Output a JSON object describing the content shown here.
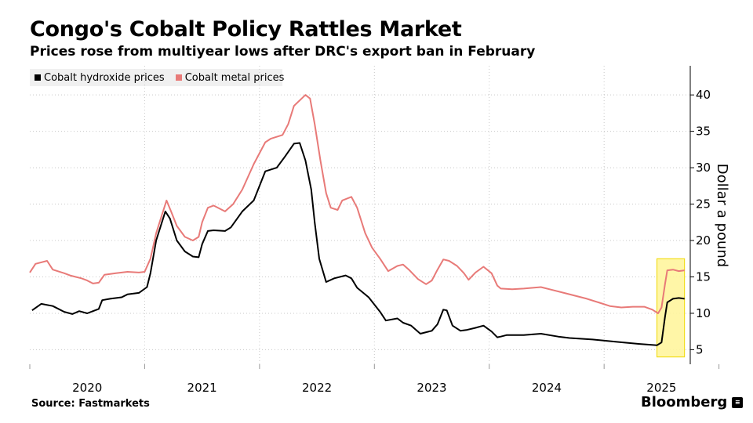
{
  "header": {
    "title": "Congo's Cobalt Policy Rattles Market",
    "subtitle": "Prices rose from multiyear lows after DRC's export ban in February"
  },
  "footer": {
    "source": "Source: Fastmarkets",
    "brand": "Bloomberg",
    "brand_mark": "≡"
  },
  "colors": {
    "hydroxide": "#000000",
    "metal": "#e87a78",
    "highlight_fill": "#fff59d",
    "highlight_stroke": "#f0d800",
    "grid": "#c8c8c8"
  },
  "chart_data": {
    "type": "line",
    "title": "Congo's Cobalt Policy Rattles Market",
    "subtitle": "Prices rose from multiyear lows after DRC's export ban in February",
    "ylabel": "Dollar a pound",
    "ylim": [
      3,
      44
    ],
    "yticks": [
      5,
      10,
      15,
      20,
      25,
      30,
      35,
      40
    ],
    "y_axis_side": "right",
    "x_range": [
      2019.5,
      2025.25
    ],
    "xticks": [
      {
        "label": "2020",
        "value": 2020.0
      },
      {
        "label": "2021",
        "value": 2021.0
      },
      {
        "label": "2022",
        "value": 2022.0
      },
      {
        "label": "2023",
        "value": 2023.0
      },
      {
        "label": "2024",
        "value": 2024.0
      },
      {
        "label": "2025",
        "value": 2025.0
      }
    ],
    "grid": "dotted-vertical",
    "legend_position": "top-left",
    "highlight": {
      "x_range": [
        2024.96,
        2025.2
      ],
      "y_range": [
        4,
        17.5
      ]
    },
    "series": [
      {
        "name": "Cobalt hydroxide prices",
        "color": "#000000",
        "points": [
          [
            2019.52,
            10.4
          ],
          [
            2019.6,
            11.3
          ],
          [
            2019.7,
            11.0
          ],
          [
            2019.8,
            10.2
          ],
          [
            2019.87,
            9.9
          ],
          [
            2019.93,
            10.3
          ],
          [
            2020.0,
            10.0
          ],
          [
            2020.05,
            10.3
          ],
          [
            2020.1,
            10.6
          ],
          [
            2020.13,
            11.8
          ],
          [
            2020.2,
            12.0
          ],
          [
            2020.3,
            12.2
          ],
          [
            2020.35,
            12.6
          ],
          [
            2020.45,
            12.8
          ],
          [
            2020.52,
            13.6
          ],
          [
            2020.55,
            15.5
          ],
          [
            2020.6,
            20.0
          ],
          [
            2020.65,
            22.5
          ],
          [
            2020.68,
            24.0
          ],
          [
            2020.72,
            23.0
          ],
          [
            2020.78,
            20.0
          ],
          [
            2020.85,
            18.5
          ],
          [
            2020.92,
            17.8
          ],
          [
            2020.97,
            17.7
          ],
          [
            2021.0,
            19.5
          ],
          [
            2021.05,
            21.3
          ],
          [
            2021.1,
            21.4
          ],
          [
            2021.2,
            21.3
          ],
          [
            2021.25,
            21.8
          ],
          [
            2021.35,
            24.0
          ],
          [
            2021.45,
            25.5
          ],
          [
            2021.5,
            27.5
          ],
          [
            2021.55,
            29.5
          ],
          [
            2021.65,
            30.0
          ],
          [
            2021.72,
            31.5
          ],
          [
            2021.8,
            33.3
          ],
          [
            2021.85,
            33.4
          ],
          [
            2021.9,
            31.0
          ],
          [
            2021.95,
            27.0
          ],
          [
            2021.98,
            22.5
          ],
          [
            2022.02,
            17.5
          ],
          [
            2022.08,
            14.3
          ],
          [
            2022.15,
            14.8
          ],
          [
            2022.25,
            15.2
          ],
          [
            2022.3,
            14.8
          ],
          [
            2022.35,
            13.5
          ],
          [
            2022.45,
            12.2
          ],
          [
            2022.55,
            10.2
          ],
          [
            2022.6,
            9.0
          ],
          [
            2022.7,
            9.3
          ],
          [
            2022.75,
            8.7
          ],
          [
            2022.82,
            8.3
          ],
          [
            2022.9,
            7.2
          ],
          [
            2022.95,
            7.4
          ],
          [
            2023.0,
            7.6
          ],
          [
            2023.05,
            8.5
          ],
          [
            2023.1,
            10.5
          ],
          [
            2023.13,
            10.4
          ],
          [
            2023.18,
            8.3
          ],
          [
            2023.25,
            7.6
          ],
          [
            2023.3,
            7.7
          ],
          [
            2023.38,
            8.0
          ],
          [
            2023.45,
            8.3
          ],
          [
            2023.52,
            7.5
          ],
          [
            2023.57,
            6.7
          ],
          [
            2023.6,
            6.8
          ],
          [
            2023.65,
            7.0
          ],
          [
            2023.8,
            7.0
          ],
          [
            2023.95,
            7.2
          ],
          [
            2024.1,
            6.8
          ],
          [
            2024.2,
            6.6
          ],
          [
            2024.4,
            6.4
          ],
          [
            2024.6,
            6.1
          ],
          [
            2024.8,
            5.8
          ],
          [
            2024.96,
            5.6
          ],
          [
            2025.0,
            6.0
          ],
          [
            2025.03,
            9.5
          ],
          [
            2025.05,
            11.5
          ],
          [
            2025.1,
            12.0
          ],
          [
            2025.15,
            12.1
          ],
          [
            2025.2,
            12.0
          ]
        ]
      },
      {
        "name": "Cobalt metal prices",
        "color": "#e87a78",
        "points": [
          [
            2019.5,
            15.6
          ],
          [
            2019.55,
            16.8
          ],
          [
            2019.65,
            17.2
          ],
          [
            2019.7,
            16.0
          ],
          [
            2019.8,
            15.5
          ],
          [
            2019.85,
            15.2
          ],
          [
            2019.9,
            15.0
          ],
          [
            2019.95,
            14.8
          ],
          [
            2020.0,
            14.5
          ],
          [
            2020.05,
            14.1
          ],
          [
            2020.1,
            14.2
          ],
          [
            2020.15,
            15.3
          ],
          [
            2020.25,
            15.5
          ],
          [
            2020.35,
            15.7
          ],
          [
            2020.45,
            15.6
          ],
          [
            2020.5,
            15.7
          ],
          [
            2020.55,
            17.5
          ],
          [
            2020.6,
            21.0
          ],
          [
            2020.65,
            23.5
          ],
          [
            2020.69,
            25.5
          ],
          [
            2020.73,
            24.0
          ],
          [
            2020.78,
            22.0
          ],
          [
            2020.85,
            20.5
          ],
          [
            2020.92,
            20.0
          ],
          [
            2020.97,
            20.5
          ],
          [
            2021.0,
            22.5
          ],
          [
            2021.05,
            24.5
          ],
          [
            2021.1,
            24.8
          ],
          [
            2021.2,
            24.0
          ],
          [
            2021.27,
            25.0
          ],
          [
            2021.35,
            27.0
          ],
          [
            2021.45,
            30.5
          ],
          [
            2021.5,
            32.0
          ],
          [
            2021.55,
            33.5
          ],
          [
            2021.6,
            34.0
          ],
          [
            2021.7,
            34.5
          ],
          [
            2021.75,
            36.0
          ],
          [
            2021.8,
            38.5
          ],
          [
            2021.9,
            40.0
          ],
          [
            2021.94,
            39.5
          ],
          [
            2021.98,
            36.0
          ],
          [
            2022.03,
            31.0
          ],
          [
            2022.08,
            26.5
          ],
          [
            2022.12,
            24.5
          ],
          [
            2022.18,
            24.2
          ],
          [
            2022.22,
            25.5
          ],
          [
            2022.3,
            26.0
          ],
          [
            2022.35,
            24.5
          ],
          [
            2022.42,
            21.0
          ],
          [
            2022.48,
            19.0
          ],
          [
            2022.55,
            17.5
          ],
          [
            2022.62,
            15.8
          ],
          [
            2022.7,
            16.5
          ],
          [
            2022.75,
            16.7
          ],
          [
            2022.8,
            16.0
          ],
          [
            2022.88,
            14.7
          ],
          [
            2022.95,
            14.0
          ],
          [
            2023.0,
            14.5
          ],
          [
            2023.05,
            16.0
          ],
          [
            2023.1,
            17.4
          ],
          [
            2023.15,
            17.2
          ],
          [
            2023.22,
            16.5
          ],
          [
            2023.28,
            15.5
          ],
          [
            2023.32,
            14.6
          ],
          [
            2023.38,
            15.6
          ],
          [
            2023.45,
            16.4
          ],
          [
            2023.52,
            15.5
          ],
          [
            2023.57,
            13.8
          ],
          [
            2023.6,
            13.4
          ],
          [
            2023.7,
            13.3
          ],
          [
            2023.8,
            13.4
          ],
          [
            2023.95,
            13.6
          ],
          [
            2024.05,
            13.2
          ],
          [
            2024.15,
            12.8
          ],
          [
            2024.25,
            12.4
          ],
          [
            2024.35,
            12.0
          ],
          [
            2024.45,
            11.5
          ],
          [
            2024.55,
            11.0
          ],
          [
            2024.65,
            10.8
          ],
          [
            2024.75,
            10.9
          ],
          [
            2024.85,
            10.9
          ],
          [
            2024.92,
            10.5
          ],
          [
            2024.97,
            10.0
          ],
          [
            2025.0,
            10.8
          ],
          [
            2025.03,
            14.0
          ],
          [
            2025.05,
            15.9
          ],
          [
            2025.1,
            16.0
          ],
          [
            2025.15,
            15.8
          ],
          [
            2025.2,
            15.9
          ]
        ]
      }
    ]
  }
}
